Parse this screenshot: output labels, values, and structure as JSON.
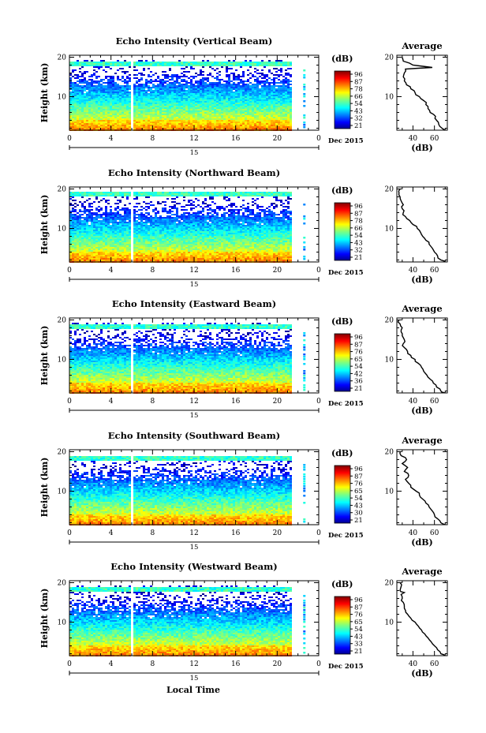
{
  "figure": {
    "xlabel": "Local Time",
    "date_label": "Dec 2015",
    "date_day": "15",
    "colorbar_unit": "(dB)",
    "avg_xlabel": "(dB)",
    "avg_title": "Average"
  },
  "chart_data": [
    {
      "type": "heatmap",
      "title": "Echo Intensity (Vertical Beam)",
      "ylabel": "Height (km)",
      "xlabel": "Local Time",
      "x_ticks": [
        "0",
        "4",
        "8",
        "12",
        "16",
        "20",
        "0"
      ],
      "x_range": [
        0,
        24
      ],
      "y_ticks": [
        "10",
        "20"
      ],
      "y_range": [
        1.5,
        20.5
      ],
      "colorbar": {
        "label": "(dB)",
        "ticks": [
          "96",
          "87",
          "78",
          "66",
          "54",
          "43",
          "32",
          "21"
        ],
        "range": [
          21,
          96
        ]
      },
      "data_gaps_hours": [
        [
          5.8,
          5.95
        ],
        [
          17.6,
          17.75
        ],
        [
          21.3,
          22.3
        ]
      ],
      "average_profile": {
        "title": "Average",
        "xlabel": "(dB)",
        "x_ticks": [
          "40",
          "60"
        ],
        "x_range": [
          25,
          72
        ],
        "y_ticks": [
          "10",
          "20"
        ],
        "points": [
          [
            70,
            1.5
          ],
          [
            67,
            2
          ],
          [
            64,
            3
          ],
          [
            62,
            4
          ],
          [
            61,
            5
          ],
          [
            56,
            6
          ],
          [
            54,
            7
          ],
          [
            52,
            8
          ],
          [
            50,
            9
          ],
          [
            46,
            10
          ],
          [
            42,
            11
          ],
          [
            38,
            12
          ],
          [
            34,
            13
          ],
          [
            32,
            14
          ],
          [
            31,
            15
          ],
          [
            32,
            16
          ],
          [
            33,
            17
          ],
          [
            58,
            17.4
          ],
          [
            40,
            18
          ],
          [
            31,
            19
          ],
          [
            30,
            20
          ]
        ]
      }
    },
    {
      "type": "heatmap",
      "title": "Echo Intensity (Northward Beam)",
      "ylabel": "Height (km)",
      "xlabel": "Local Time",
      "x_ticks": [
        "0",
        "4",
        "8",
        "12",
        "16",
        "20",
        "0"
      ],
      "x_range": [
        0,
        24
      ],
      "y_ticks": [
        "10",
        "20"
      ],
      "y_range": [
        1.5,
        20.5
      ],
      "colorbar": {
        "label": "(dB)",
        "ticks": [
          "96",
          "87",
          "78",
          "66",
          "54",
          "43",
          "32",
          "21"
        ],
        "range": [
          21,
          96
        ]
      },
      "data_gaps_hours": [
        [
          5.8,
          5.95
        ],
        [
          17.6,
          17.75
        ],
        [
          21.3,
          22.3
        ]
      ],
      "average_profile": {
        "title": "",
        "xlabel": "(dB)",
        "x_ticks": [
          "40",
          "60"
        ],
        "x_range": [
          25,
          72
        ],
        "y_ticks": [
          "10",
          "20"
        ],
        "points": [
          [
            70,
            1.5
          ],
          [
            66,
            2
          ],
          [
            63,
            3
          ],
          [
            60,
            4
          ],
          [
            58,
            5
          ],
          [
            55,
            6
          ],
          [
            52,
            7
          ],
          [
            49,
            8
          ],
          [
            47,
            9
          ],
          [
            44,
            10
          ],
          [
            40,
            11
          ],
          [
            37,
            12
          ],
          [
            33,
            13
          ],
          [
            31,
            14
          ],
          [
            30,
            15
          ],
          [
            31,
            16
          ],
          [
            29,
            17
          ],
          [
            28,
            18
          ],
          [
            27,
            19
          ],
          [
            28,
            20
          ]
        ]
      }
    },
    {
      "type": "heatmap",
      "title": "Echo Intensity (Eastward Beam)",
      "ylabel": "Height (km)",
      "xlabel": "Local Time",
      "x_ticks": [
        "0",
        "4",
        "8",
        "12",
        "16",
        "20",
        "0"
      ],
      "x_range": [
        0,
        24
      ],
      "y_ticks": [
        "10",
        "20"
      ],
      "y_range": [
        1.5,
        20.5
      ],
      "colorbar": {
        "label": "(dB)",
        "ticks": [
          "96",
          "87",
          "76",
          "65",
          "54",
          "42",
          "36",
          "21"
        ],
        "range": [
          21,
          96
        ]
      },
      "data_gaps_hours": [
        [
          5.8,
          5.95
        ],
        [
          17.6,
          17.75
        ],
        [
          21.3,
          22.3
        ]
      ],
      "average_profile": {
        "title": "Average",
        "xlabel": "(dB)",
        "x_ticks": [
          "40",
          "60"
        ],
        "x_range": [
          25,
          72
        ],
        "y_ticks": [
          "10",
          "20"
        ],
        "points": [
          [
            70,
            1.5
          ],
          [
            66,
            2
          ],
          [
            62,
            3
          ],
          [
            59,
            4
          ],
          [
            56,
            5
          ],
          [
            53,
            6
          ],
          [
            50,
            7
          ],
          [
            48,
            8
          ],
          [
            45,
            9
          ],
          [
            42,
            10
          ],
          [
            38,
            11
          ],
          [
            35,
            12
          ],
          [
            32,
            13
          ],
          [
            31,
            14
          ],
          [
            32,
            15
          ],
          [
            30,
            16
          ],
          [
            29,
            17
          ],
          [
            30,
            18
          ],
          [
            28,
            19
          ],
          [
            27,
            20
          ]
        ]
      }
    },
    {
      "type": "heatmap",
      "title": "Echo Intensity (Southward Beam)",
      "ylabel": "Height (km)",
      "xlabel": "Local Time",
      "x_ticks": [
        "0",
        "4",
        "8",
        "12",
        "16",
        "20",
        "0"
      ],
      "x_range": [
        0,
        24
      ],
      "y_ticks": [
        "10",
        "20"
      ],
      "y_range": [
        1.5,
        20.5
      ],
      "colorbar": {
        "label": "(dB)",
        "ticks": [
          "96",
          "87",
          "76",
          "65",
          "54",
          "43",
          "30",
          "21"
        ],
        "range": [
          21,
          96
        ]
      },
      "data_gaps_hours": [
        [
          5.8,
          5.95
        ],
        [
          17.6,
          17.75
        ],
        [
          21.3,
          22.3
        ]
      ],
      "average_profile": {
        "title": "Average",
        "xlabel": "(dB)",
        "x_ticks": [
          "40",
          "60"
        ],
        "x_range": [
          25,
          72
        ],
        "y_ticks": [
          "10",
          "20"
        ],
        "points": [
          [
            70,
            1.5
          ],
          [
            66,
            2
          ],
          [
            63,
            3
          ],
          [
            60,
            4
          ],
          [
            58,
            5
          ],
          [
            55,
            6
          ],
          [
            52,
            7
          ],
          [
            49,
            8
          ],
          [
            46,
            9
          ],
          [
            43,
            10
          ],
          [
            38,
            11
          ],
          [
            36,
            12
          ],
          [
            33,
            13
          ],
          [
            36,
            14
          ],
          [
            32,
            15
          ],
          [
            35,
            16
          ],
          [
            30,
            17
          ],
          [
            34,
            18
          ],
          [
            29,
            19
          ],
          [
            28,
            20
          ]
        ]
      }
    },
    {
      "type": "heatmap",
      "title": "Echo Intensity (Westward Beam)",
      "ylabel": "Height (km)",
      "xlabel": "Local Time",
      "x_ticks": [
        "0",
        "4",
        "8",
        "12",
        "16",
        "20",
        "0"
      ],
      "x_range": [
        0,
        24
      ],
      "y_ticks": [
        "10",
        "20"
      ],
      "y_range": [
        1.5,
        20.5
      ],
      "colorbar": {
        "label": "(dB)",
        "ticks": [
          "96",
          "87",
          "76",
          "65",
          "54",
          "43",
          "33",
          "21"
        ],
        "range": [
          21,
          96
        ]
      },
      "data_gaps_hours": [
        [
          5.8,
          5.95
        ],
        [
          17.6,
          17.75
        ],
        [
          21.3,
          22.3
        ]
      ],
      "average_profile": {
        "title": "Average",
        "xlabel": "(dB)",
        "x_ticks": [
          "40",
          "60"
        ],
        "x_range": [
          25,
          72
        ],
        "y_ticks": [
          "10",
          "20"
        ],
        "points": [
          [
            70,
            1.5
          ],
          [
            66,
            2
          ],
          [
            63,
            3
          ],
          [
            60,
            4
          ],
          [
            57,
            5
          ],
          [
            54,
            6
          ],
          [
            51,
            7
          ],
          [
            48,
            8
          ],
          [
            45,
            9
          ],
          [
            42,
            10
          ],
          [
            38,
            11
          ],
          [
            35,
            12
          ],
          [
            33,
            13
          ],
          [
            32,
            14
          ],
          [
            31,
            15
          ],
          [
            30,
            16
          ],
          [
            29,
            17
          ],
          [
            32,
            17.5
          ],
          [
            28,
            18
          ],
          [
            29,
            19
          ],
          [
            28,
            20
          ]
        ]
      }
    }
  ]
}
